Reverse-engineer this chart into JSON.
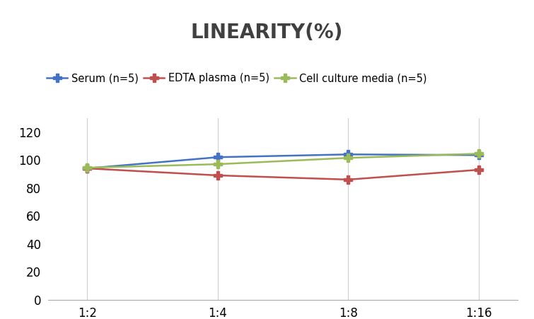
{
  "title": "LINEARITY(%)",
  "title_fontsize": 20,
  "title_fontweight": "bold",
  "x_labels": [
    "1:2",
    "1:4",
    "1:8",
    "1:16"
  ],
  "x_values": [
    0,
    1,
    2,
    3
  ],
  "series": [
    {
      "label": "Serum (n=5)",
      "values": [
        94.0,
        102.0,
        104.0,
        103.5
      ],
      "color": "#4472C4",
      "marker": "P",
      "markersize": 8,
      "linewidth": 1.8
    },
    {
      "label": "EDTA plasma (n=5)",
      "values": [
        94.0,
        89.0,
        86.0,
        93.0
      ],
      "color": "#C0504D",
      "marker": "P",
      "markersize": 8,
      "linewidth": 1.8
    },
    {
      "label": "Cell culture media (n=5)",
      "values": [
        94.5,
        97.0,
        101.5,
        104.5
      ],
      "color": "#9BBB59",
      "marker": "P",
      "markersize": 8,
      "linewidth": 1.8
    }
  ],
  "ylim": [
    0,
    130
  ],
  "yticks": [
    0,
    20,
    40,
    60,
    80,
    100,
    120
  ],
  "background_color": "#ffffff",
  "grid_color": "#d0d0d0",
  "legend_fontsize": 10.5,
  "tick_fontsize": 12,
  "title_color": "#404040"
}
